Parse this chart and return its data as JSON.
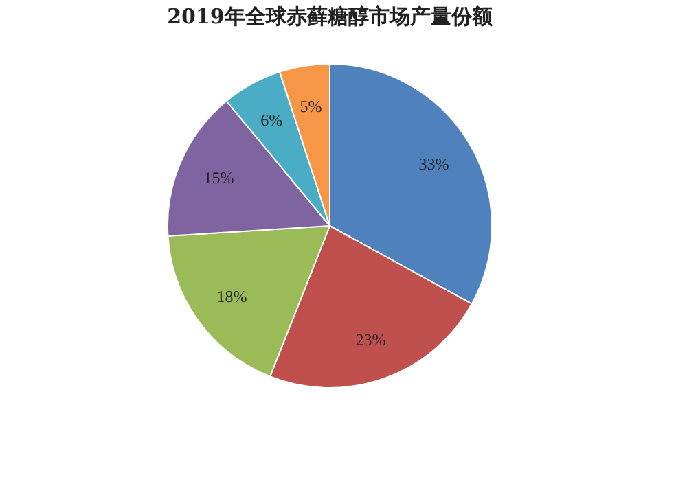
{
  "chart_data": {
    "type": "pie",
    "title": "2019年全球赤藓糖醇市场产量份额",
    "categories": [
      null,
      null,
      null,
      null,
      null,
      null
    ],
    "values": [
      33,
      23,
      18,
      15,
      6,
      5
    ],
    "value_labels": [
      "33%",
      "23%",
      "18%",
      "15%",
      "6%",
      "5%"
    ],
    "colors": [
      "#4f81bd",
      "#c0504d",
      "#9bbb59",
      "#8064a2",
      "#4bacc6",
      "#f79646"
    ],
    "legend": false
  }
}
